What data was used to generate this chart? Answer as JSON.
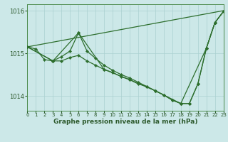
{
  "xlabel": "Graphe pression niveau de la mer (hPa)",
  "xlim": [
    0,
    23
  ],
  "ylim": [
    1013.65,
    1016.15
  ],
  "yticks": [
    1014,
    1015,
    1016
  ],
  "xticks": [
    0,
    1,
    2,
    3,
    4,
    5,
    6,
    7,
    8,
    9,
    10,
    11,
    12,
    13,
    14,
    15,
    16,
    17,
    18,
    19,
    20,
    21,
    22,
    23
  ],
  "bg_color": "#cce8e8",
  "line_color": "#2d6e2d",
  "grid_color": "#aad0d0",
  "line_top": {
    "x": [
      0,
      23
    ],
    "y": [
      1015.15,
      1016.0
    ]
  },
  "line_main": {
    "x": [
      0,
      1,
      2,
      3,
      4,
      5,
      6,
      7,
      8,
      9,
      10,
      11,
      12,
      13,
      14,
      15,
      16,
      17,
      18,
      19,
      20,
      21,
      22,
      23
    ],
    "y": [
      1015.15,
      1015.1,
      1014.85,
      1014.82,
      1014.82,
      1014.9,
      1014.95,
      1014.82,
      1014.72,
      1014.62,
      1014.55,
      1014.45,
      1014.38,
      1014.28,
      1014.22,
      1014.12,
      1014.02,
      1013.9,
      1013.82,
      1013.82,
      1014.28,
      1015.12,
      1015.72,
      1015.98
    ]
  },
  "line_zigzag": {
    "x": [
      0,
      3,
      4,
      5,
      6,
      7,
      8,
      9,
      10,
      11,
      12,
      13,
      14,
      15,
      16,
      17,
      18,
      19,
      20,
      21,
      22,
      23
    ],
    "y": [
      1015.15,
      1014.82,
      1014.92,
      1015.05,
      1015.48,
      1015.05,
      1014.88,
      1014.72,
      1014.6,
      1014.5,
      1014.42,
      1014.32,
      1014.22,
      1014.12,
      1014.02,
      1013.9,
      1013.82,
      1013.82,
      1014.28,
      1015.12,
      1015.72,
      1015.98
    ]
  },
  "line_3h": {
    "x": [
      0,
      3,
      6,
      9,
      12,
      15,
      18,
      21,
      22,
      23
    ],
    "y": [
      1015.15,
      1014.82,
      1015.48,
      1014.62,
      1014.38,
      1014.12,
      1013.82,
      1015.12,
      1015.72,
      1015.98
    ]
  }
}
